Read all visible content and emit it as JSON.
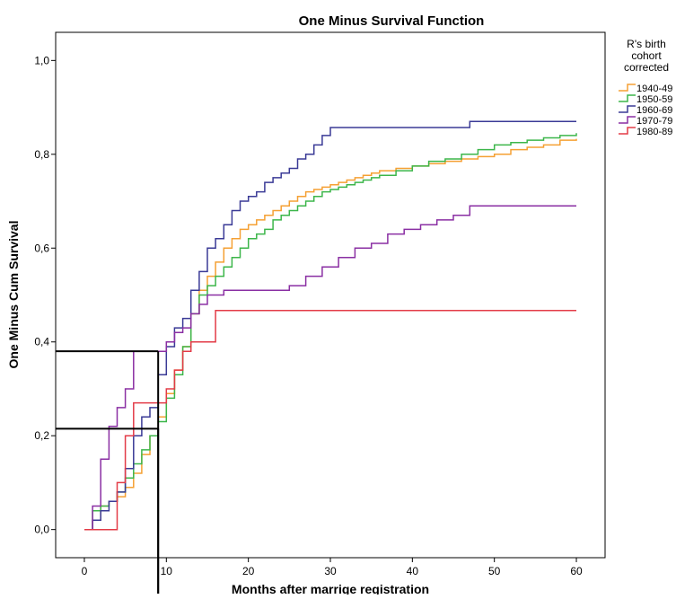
{
  "chart_data": {
    "type": "line",
    "subtype": "step",
    "title": "One Minus Survival Function",
    "xlabel": "Months after marrige registration",
    "ylabel": "One Minus Cum Survival",
    "xlim": [
      -3.5,
      63.5
    ],
    "ylim": [
      -0.06,
      1.06
    ],
    "x_ticks": [
      0,
      10,
      20,
      30,
      40,
      50,
      60
    ],
    "y_ticks": [
      0.0,
      0.2,
      0.4,
      0.6,
      0.8,
      1.0
    ],
    "x_tick_labels": [
      "0",
      "10",
      "20",
      "30",
      "40",
      "50",
      "60"
    ],
    "y_tick_labels": [
      "0,0",
      "0,2",
      "0,4",
      "0,6",
      "0,8",
      "1,0"
    ],
    "grid": false,
    "legend": {
      "title_lines": [
        "R's birth",
        "cohort",
        "corrected"
      ],
      "placement": "right"
    },
    "series": [
      {
        "name": "1940-49",
        "color": "#f5a033",
        "x": [
          0,
          1,
          2,
          3,
          4,
          5,
          6,
          7,
          8,
          9,
          10,
          11,
          12,
          13,
          14,
          15,
          16,
          17,
          18,
          19,
          20,
          21,
          22,
          23,
          24,
          25,
          26,
          27,
          28,
          29,
          30,
          31,
          32,
          33,
          34,
          35,
          36,
          38,
          40,
          42,
          44,
          46,
          48,
          50,
          52,
          54,
          56,
          58,
          60
        ],
        "y": [
          0.0,
          0.02,
          0.05,
          0.06,
          0.07,
          0.09,
          0.12,
          0.16,
          0.2,
          0.24,
          0.29,
          0.34,
          0.39,
          0.46,
          0.51,
          0.54,
          0.57,
          0.6,
          0.62,
          0.64,
          0.65,
          0.66,
          0.67,
          0.68,
          0.69,
          0.7,
          0.71,
          0.72,
          0.725,
          0.73,
          0.735,
          0.74,
          0.745,
          0.75,
          0.755,
          0.76,
          0.765,
          0.77,
          0.775,
          0.78,
          0.785,
          0.79,
          0.795,
          0.8,
          0.81,
          0.815,
          0.82,
          0.83,
          0.833
        ]
      },
      {
        "name": "1950-59",
        "color": "#3cb64a",
        "x": [
          0,
          1,
          2,
          3,
          4,
          5,
          6,
          7,
          8,
          9,
          10,
          11,
          12,
          13,
          14,
          15,
          16,
          17,
          18,
          19,
          20,
          21,
          22,
          23,
          24,
          25,
          26,
          27,
          28,
          29,
          30,
          31,
          32,
          33,
          34,
          35,
          36,
          38,
          40,
          42,
          44,
          46,
          48,
          50,
          52,
          54,
          56,
          58,
          60
        ],
        "y": [
          0.0,
          0.04,
          0.05,
          0.06,
          0.08,
          0.11,
          0.14,
          0.17,
          0.2,
          0.23,
          0.28,
          0.33,
          0.39,
          0.46,
          0.5,
          0.52,
          0.54,
          0.56,
          0.58,
          0.6,
          0.62,
          0.63,
          0.64,
          0.66,
          0.67,
          0.68,
          0.69,
          0.7,
          0.71,
          0.72,
          0.725,
          0.73,
          0.735,
          0.74,
          0.745,
          0.75,
          0.755,
          0.765,
          0.775,
          0.785,
          0.79,
          0.8,
          0.81,
          0.82,
          0.825,
          0.83,
          0.835,
          0.84,
          0.845
        ]
      },
      {
        "name": "1960-69",
        "color": "#3a3a96",
        "x": [
          0,
          1,
          2,
          3,
          4,
          5,
          6,
          7,
          8,
          9,
          10,
          11,
          12,
          13,
          14,
          15,
          16,
          17,
          18,
          19,
          20,
          21,
          22,
          23,
          24,
          25,
          26,
          27,
          28,
          29,
          30,
          35,
          40,
          45,
          47,
          50,
          55,
          60
        ],
        "y": [
          0.0,
          0.02,
          0.04,
          0.06,
          0.08,
          0.13,
          0.2,
          0.24,
          0.26,
          0.33,
          0.39,
          0.43,
          0.45,
          0.51,
          0.55,
          0.6,
          0.62,
          0.65,
          0.68,
          0.7,
          0.71,
          0.72,
          0.74,
          0.75,
          0.76,
          0.77,
          0.79,
          0.8,
          0.82,
          0.84,
          0.857,
          0.857,
          0.857,
          0.857,
          0.87,
          0.87,
          0.87,
          0.87
        ]
      },
      {
        "name": "1970-79",
        "color": "#8a2fa3",
        "x": [
          0,
          1,
          2,
          3,
          4,
          5,
          6,
          7,
          8,
          9,
          10,
          11,
          12,
          13,
          14,
          15,
          17,
          19,
          21,
          23,
          25,
          27,
          29,
          31,
          33,
          35,
          37,
          39,
          41,
          43,
          45,
          47,
          50,
          55,
          60
        ],
        "y": [
          0.0,
          0.05,
          0.15,
          0.22,
          0.26,
          0.3,
          0.38,
          0.38,
          0.38,
          0.38,
          0.4,
          0.42,
          0.43,
          0.46,
          0.48,
          0.5,
          0.51,
          0.51,
          0.51,
          0.51,
          0.52,
          0.54,
          0.56,
          0.58,
          0.6,
          0.61,
          0.63,
          0.64,
          0.65,
          0.66,
          0.67,
          0.69,
          0.69,
          0.69,
          0.69
        ]
      },
      {
        "name": "1980-89",
        "color": "#e33b47",
        "x": [
          0,
          1,
          2,
          3,
          4,
          5,
          6,
          7,
          8,
          9,
          10,
          11,
          12,
          13,
          14,
          15,
          16,
          20,
          30,
          40,
          50,
          60
        ],
        "y": [
          0.0,
          0.0,
          0.0,
          0.0,
          0.1,
          0.2,
          0.27,
          0.27,
          0.27,
          0.27,
          0.3,
          0.34,
          0.38,
          0.4,
          0.4,
          0.4,
          0.467,
          0.467,
          0.467,
          0.467,
          0.467,
          0.467
        ]
      }
    ],
    "annotations": [
      {
        "type": "reference_lines",
        "x": 9,
        "y": 0.38,
        "color": "#000000"
      },
      {
        "type": "reference_lines",
        "x": 9,
        "y": 0.215,
        "color": "#000000"
      }
    ]
  }
}
